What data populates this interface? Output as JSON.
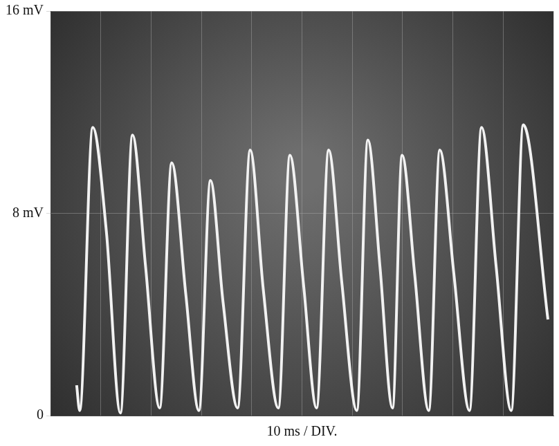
{
  "chart_data": {
    "type": "line",
    "x_label": "10 ms / DIV.",
    "x": [
      5.2,
      5.8,
      8.4,
      11.1,
      13.9,
      16.3,
      18.9,
      21.7,
      24.1,
      26.9,
      29.5,
      31.8,
      34.3,
      37.2,
      39.7,
      42.3,
      45.3,
      47.6,
      50.3,
      52.9,
      55.3,
      57.9,
      60.9,
      63.1,
      65.5,
      68.0,
      69.9,
      72.4,
      75.2,
      77.4,
      80.2,
      83.3,
      85.7,
      88.6,
      91.6,
      94.0,
      98.9
    ],
    "values": [
      1.2,
      0.2,
      11.4,
      7.3,
      0.1,
      11.1,
      5.9,
      0.3,
      10.0,
      4.8,
      0.2,
      9.3,
      4.5,
      0.3,
      10.5,
      5.0,
      0.3,
      10.3,
      5.2,
      0.3,
      10.5,
      5.3,
      0.2,
      10.9,
      5.9,
      0.3,
      10.3,
      5.6,
      0.2,
      10.5,
      5.6,
      0.2,
      11.4,
      5.9,
      0.2,
      11.5,
      3.8
    ],
    "color": "#f2f2f2",
    "xlim": [
      0,
      100
    ],
    "xticks": [
      0,
      10,
      20,
      30,
      40,
      50,
      60,
      70,
      80,
      90,
      100
    ],
    "ylim": [
      0,
      16
    ],
    "yticks": [
      {
        "value": 0,
        "label": "0"
      },
      {
        "value": 8,
        "label": "8 mV"
      },
      {
        "value": 16,
        "label": "16 mV"
      }
    ],
    "grid": true,
    "tick_labels": "y",
    "line_style": "solid",
    "marker": "none"
  }
}
